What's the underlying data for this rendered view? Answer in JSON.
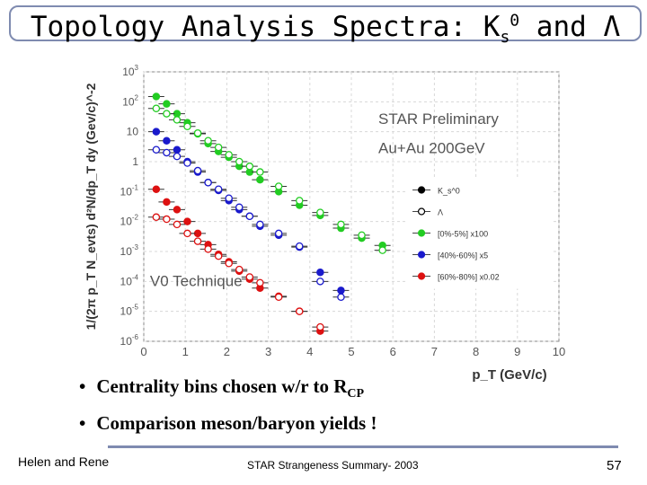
{
  "slide": {
    "title_prefix": "Topology Analysis Spectra: K",
    "title_sub": "s",
    "title_sup": "0",
    "title_mid": " and ",
    "title_lambda": "Λ",
    "bullets": [
      "Centrality bins chosen w/r to R",
      "Comparison meson/baryon yields !"
    ],
    "bullet_sub": "CP",
    "footer_left": "Helen and Rene",
    "footer_center": "STAR Strangeness Summary- 2003",
    "page_number": "57"
  },
  "chart_data": {
    "type": "scatter",
    "annotation_1": "STAR Preliminary",
    "annotation_2": "Au+Au 200GeV",
    "annotation_3": "V0 Technique",
    "xlabel": "p_T (GeV/c)",
    "ylabel": "1/(2π p_T N_evts) d²N/dp_T dy (Gev/c)^-2",
    "xlim": [
      0,
      10
    ],
    "ylim_log10": [
      -6,
      3
    ],
    "xticks": [
      "0",
      "1",
      "2",
      "3",
      "4",
      "5",
      "6",
      "7",
      "8",
      "9",
      "10"
    ],
    "yticks": [
      "10^3",
      "10^2",
      "10",
      "1",
      "10^-1",
      "10^-2",
      "10^-3",
      "10^-4",
      "10^-5",
      "10^-6"
    ],
    "legend": [
      {
        "label": "K_s^0",
        "color": "#000000",
        "filled": true
      },
      {
        "label": "Λ",
        "color": "#000000",
        "filled": false
      },
      {
        "label": "[0%-5%] x100",
        "color": "#22cc22",
        "filled": true
      },
      {
        "label": "[40%-60%] x5",
        "color": "#1a1acc",
        "filled": true
      },
      {
        "label": "[60%-80%] x0.02",
        "color": "#dd1111",
        "filled": true
      }
    ],
    "series": [
      {
        "name": "K0s [0%-5%] x100",
        "color": "#22cc22",
        "filled": true,
        "x": [
          0.3,
          0.55,
          0.8,
          1.05,
          1.3,
          1.55,
          1.8,
          2.05,
          2.3,
          2.55,
          2.8,
          3.25,
          3.75,
          4.25,
          4.75,
          5.25,
          5.75
        ],
        "y": [
          150,
          85,
          40,
          20,
          8.5,
          4.0,
          2.2,
          1.4,
          0.7,
          0.45,
          0.25,
          0.1,
          0.035,
          0.016,
          0.006,
          0.0028,
          0.0016
        ]
      },
      {
        "name": "Lambda [0%-5%] x100",
        "color": "#22cc22",
        "filled": false,
        "x": [
          0.3,
          0.55,
          0.8,
          1.05,
          1.3,
          1.55,
          1.8,
          2.05,
          2.3,
          2.55,
          2.8,
          3.25,
          3.75,
          4.25,
          4.75,
          5.25,
          5.75
        ],
        "y": [
          60,
          40,
          25,
          15,
          9,
          5,
          3,
          1.7,
          1.0,
          0.7,
          0.45,
          0.15,
          0.05,
          0.02,
          0.008,
          0.0035,
          0.0011
        ]
      },
      {
        "name": "K0s [40%-60%] x5",
        "color": "#1a1acc",
        "filled": true,
        "x": [
          0.3,
          0.55,
          0.8,
          1.05,
          1.3,
          1.55,
          1.8,
          2.05,
          2.3,
          2.55,
          2.8,
          3.25,
          3.75,
          4.25,
          4.75
        ],
        "y": [
          10,
          5,
          2.5,
          1.0,
          0.45,
          0.2,
          0.11,
          0.05,
          0.025,
          0.015,
          0.007,
          0.0035,
          0.0014,
          0.0002,
          5e-05
        ]
      },
      {
        "name": "Lambda [40%-60%] x5",
        "color": "#1a1acc",
        "filled": false,
        "x": [
          0.3,
          0.55,
          0.8,
          1.05,
          1.3,
          1.55,
          1.8,
          2.05,
          2.3,
          2.55,
          2.8,
          3.25,
          3.75,
          4.25,
          4.75
        ],
        "y": [
          2.5,
          2.0,
          1.5,
          0.9,
          0.5,
          0.2,
          0.12,
          0.06,
          0.03,
          0.015,
          0.008,
          0.004,
          0.0015,
          0.0001,
          3e-05
        ]
      },
      {
        "name": "K0s [60%-80%] x0.02",
        "color": "#dd1111",
        "filled": true,
        "x": [
          0.3,
          0.55,
          0.8,
          1.05,
          1.3,
          1.55,
          1.8,
          2.05,
          2.3,
          2.55,
          2.8,
          3.25,
          3.75,
          4.25
        ],
        "y": [
          0.12,
          0.045,
          0.025,
          0.01,
          0.004,
          0.0017,
          0.0008,
          0.00045,
          0.00022,
          0.00012,
          6e-05,
          3.2e-05,
          1e-05,
          2.2e-06
        ]
      },
      {
        "name": "Lambda [60%-80%] x0.02",
        "color": "#dd1111",
        "filled": false,
        "x": [
          0.3,
          0.55,
          0.8,
          1.05,
          1.3,
          1.55,
          1.8,
          2.05,
          2.3,
          2.55,
          2.8,
          3.25,
          3.75,
          4.25
        ],
        "y": [
          0.014,
          0.012,
          0.008,
          0.004,
          0.0022,
          0.0012,
          0.0007,
          0.0004,
          0.00025,
          0.00014,
          9e-05,
          3e-05,
          1e-05,
          3e-06
        ]
      }
    ]
  }
}
